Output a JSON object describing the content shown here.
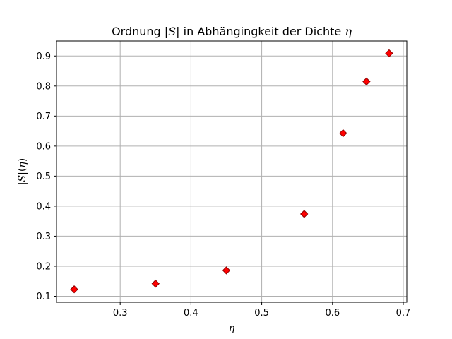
{
  "chart_data": {
    "type": "scatter",
    "title": "Ordnung |S| in Abhängingkeit der Dichte η",
    "title_parts": {
      "t1": "Ordnung |",
      "t2": "S",
      "t3": "| in Abhängingkeit der Dichte ",
      "t4": "η"
    },
    "xlabel": "η",
    "ylabel": "|S|(η)",
    "ylabel_parts": {
      "p1": "|",
      "p2": "S",
      "p3": "|(",
      "p4": "η",
      "p5": ")"
    },
    "xlim": [
      0.21,
      0.705
    ],
    "ylim": [
      0.08,
      0.95
    ],
    "xticks": [
      {
        "value": 0.3,
        "label": "0.3"
      },
      {
        "value": 0.4,
        "label": "0.4"
      },
      {
        "value": 0.5,
        "label": "0.5"
      },
      {
        "value": 0.6,
        "label": "0.6"
      },
      {
        "value": 0.7,
        "label": "0.7"
      }
    ],
    "yticks": [
      {
        "value": 0.1,
        "label": "0.1"
      },
      {
        "value": 0.2,
        "label": "0.2"
      },
      {
        "value": 0.3,
        "label": "0.3"
      },
      {
        "value": 0.4,
        "label": "0.4"
      },
      {
        "value": 0.5,
        "label": "0.5"
      },
      {
        "value": 0.6,
        "label": "0.6"
      },
      {
        "value": 0.7,
        "label": "0.7"
      },
      {
        "value": 0.8,
        "label": "0.8"
      },
      {
        "value": 0.9,
        "label": "0.9"
      }
    ],
    "grid": true,
    "marker": "diamond",
    "series": [
      {
        "color": "#ff0000",
        "edge_color": "#8b0000",
        "points": [
          {
            "x": 0.235,
            "y": 0.123
          },
          {
            "x": 0.35,
            "y": 0.142
          },
          {
            "x": 0.45,
            "y": 0.186
          },
          {
            "x": 0.56,
            "y": 0.374
          },
          {
            "x": 0.615,
            "y": 0.643
          },
          {
            "x": 0.648,
            "y": 0.815
          },
          {
            "x": 0.68,
            "y": 0.909
          }
        ]
      }
    ]
  }
}
